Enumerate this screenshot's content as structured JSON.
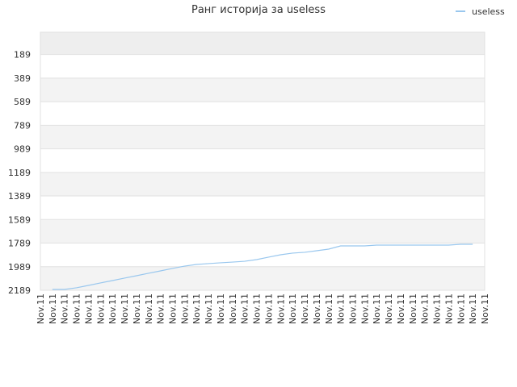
{
  "chart_data": {
    "type": "line",
    "title": "Ранг историја за useless",
    "categories": [
      "Nov.11",
      "Nov.11",
      "Nov.11",
      "Nov.11",
      "Nov.11",
      "Nov.11",
      "Nov.11",
      "Nov.11",
      "Nov.11",
      "Nov.11",
      "Nov.11",
      "Nov.11",
      "Nov.11",
      "Nov.11",
      "Nov.11",
      "Nov.11",
      "Nov.11",
      "Nov.11",
      "Nov.11",
      "Nov.11",
      "Nov.11",
      "Nov.11",
      "Nov.11",
      "Nov.11",
      "Nov.11",
      "Nov.11",
      "Nov.11",
      "Nov.11",
      "Nov.11",
      "Nov.11",
      "Nov.11",
      "Nov.11",
      "Nov.11",
      "Nov.11",
      "Nov.11",
      "Nov.11",
      "Nov.11",
      "Nov.11"
    ],
    "series": [
      {
        "name": "useless",
        "color": "#99c7ee",
        "values": [
          null,
          2182,
          2182,
          2168,
          2148,
          2127,
          2107,
          2086,
          2066,
          2045,
          2025,
          2004,
          1984,
          1970,
          1963,
          1956,
          1950,
          1943,
          1929,
          1908,
          1888,
          1874,
          1867,
          1854,
          1840,
          1813,
          1813,
          1813,
          1806,
          1806,
          1806,
          1806,
          1806,
          1806,
          1806,
          1799,
          1799,
          null
        ]
      }
    ],
    "ylim": [
      2189,
      0
    ],
    "yticks": [
      189,
      389,
      589,
      789,
      989,
      1189,
      1389,
      1589,
      1789,
      1989,
      2189
    ],
    "legend": "top-right"
  }
}
